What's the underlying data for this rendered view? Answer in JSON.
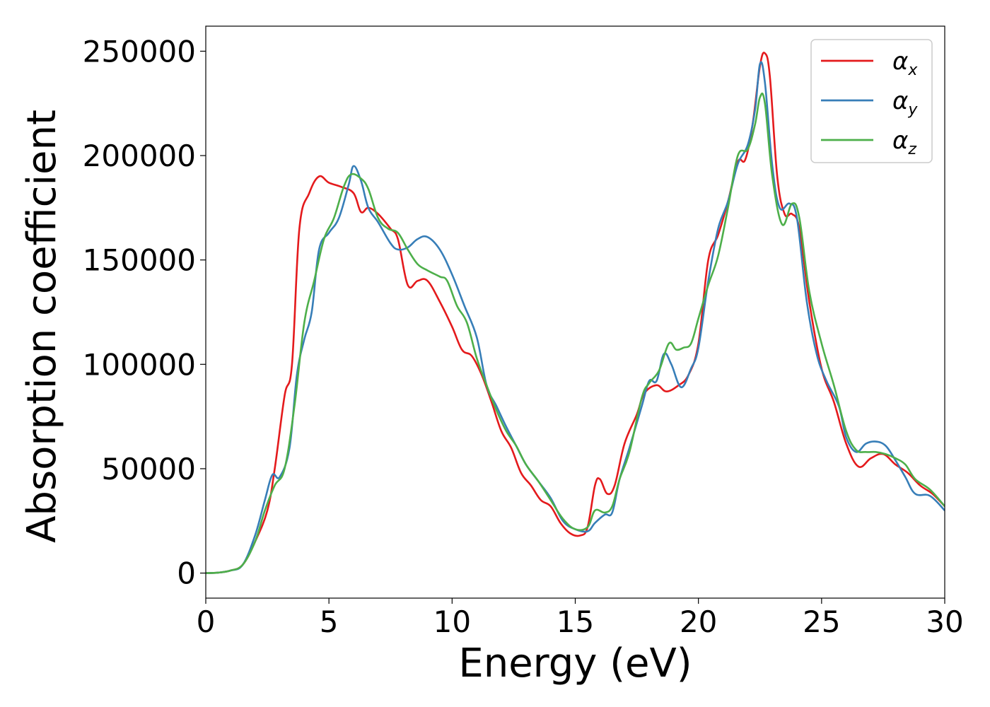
{
  "chart_data": {
    "type": "line",
    "title": "",
    "xlabel": "Energy (eV)",
    "ylabel": "Absorption coefficient",
    "xlim": [
      0,
      30
    ],
    "ylim": [
      -12000,
      262000
    ],
    "xticks": [
      0,
      5,
      10,
      15,
      20,
      25,
      30
    ],
    "xtick_labels": [
      "0",
      "5",
      "10",
      "15",
      "20",
      "25",
      "30"
    ],
    "yticks": [
      0,
      50000,
      100000,
      150000,
      200000,
      250000
    ],
    "ytick_labels": [
      "0",
      "50000",
      "100000",
      "150000",
      "200000",
      "250000"
    ],
    "grid": false,
    "legend_position": "top-right",
    "series": [
      {
        "name": "α",
        "subscript": "x",
        "color": "#e41a1c",
        "points": [
          [
            0,
            0
          ],
          [
            0.5,
            200
          ],
          [
            1.0,
            1200
          ],
          [
            1.5,
            4000
          ],
          [
            2.0,
            15000
          ],
          [
            2.5,
            30000
          ],
          [
            2.8,
            50000
          ],
          [
            3.2,
            85000
          ],
          [
            3.5,
            100000
          ],
          [
            3.8,
            165000
          ],
          [
            4.2,
            182000
          ],
          [
            4.6,
            190000
          ],
          [
            5.0,
            187000
          ],
          [
            5.5,
            185000
          ],
          [
            6.0,
            182000
          ],
          [
            6.3,
            173000
          ],
          [
            6.6,
            175000
          ],
          [
            7.0,
            172000
          ],
          [
            7.5,
            165000
          ],
          [
            7.8,
            160000
          ],
          [
            8.2,
            138000
          ],
          [
            8.6,
            140000
          ],
          [
            9.0,
            140000
          ],
          [
            9.5,
            130000
          ],
          [
            10.0,
            118000
          ],
          [
            10.4,
            107000
          ],
          [
            10.8,
            104000
          ],
          [
            11.2,
            95000
          ],
          [
            11.6,
            82000
          ],
          [
            12.0,
            68000
          ],
          [
            12.4,
            60000
          ],
          [
            12.8,
            48000
          ],
          [
            13.2,
            42000
          ],
          [
            13.6,
            35000
          ],
          [
            14.0,
            32000
          ],
          [
            14.4,
            24000
          ],
          [
            14.8,
            19000
          ],
          [
            15.2,
            18000
          ],
          [
            15.5,
            22000
          ],
          [
            15.8,
            42000
          ],
          [
            16.0,
            45000
          ],
          [
            16.3,
            38000
          ],
          [
            16.6,
            42000
          ],
          [
            17.0,
            62000
          ],
          [
            17.5,
            76000
          ],
          [
            17.8,
            86000
          ],
          [
            18.3,
            90000
          ],
          [
            18.7,
            87000
          ],
          [
            19.2,
            90000
          ],
          [
            19.6,
            95000
          ],
          [
            20.0,
            110000
          ],
          [
            20.4,
            150000
          ],
          [
            20.8,
            162000
          ],
          [
            21.2,
            178000
          ],
          [
            21.6,
            197000
          ],
          [
            21.9,
            198000
          ],
          [
            22.2,
            215000
          ],
          [
            22.5,
            243000
          ],
          [
            22.7,
            249000
          ],
          [
            22.9,
            238000
          ],
          [
            23.2,
            190000
          ],
          [
            23.5,
            172000
          ],
          [
            23.8,
            172000
          ],
          [
            24.1,
            165000
          ],
          [
            24.5,
            130000
          ],
          [
            25.0,
            98000
          ],
          [
            25.5,
            82000
          ],
          [
            26.0,
            62000
          ],
          [
            26.5,
            51000
          ],
          [
            27.0,
            55000
          ],
          [
            27.5,
            57000
          ],
          [
            28.0,
            52000
          ],
          [
            28.5,
            48000
          ],
          [
            29.0,
            42000
          ],
          [
            29.5,
            38000
          ],
          [
            30.0,
            32000
          ]
        ]
      },
      {
        "name": "α",
        "subscript": "y",
        "color": "#377eb8",
        "points": [
          [
            0,
            0
          ],
          [
            0.5,
            200
          ],
          [
            1.0,
            1200
          ],
          [
            1.5,
            4000
          ],
          [
            2.0,
            18000
          ],
          [
            2.4,
            35000
          ],
          [
            2.7,
            47000
          ],
          [
            3.0,
            46000
          ],
          [
            3.4,
            60000
          ],
          [
            3.7,
            95000
          ],
          [
            4.0,
            112000
          ],
          [
            4.3,
            125000
          ],
          [
            4.6,
            155000
          ],
          [
            5.0,
            163000
          ],
          [
            5.4,
            170000
          ],
          [
            5.8,
            186000
          ],
          [
            6.0,
            195000
          ],
          [
            6.3,
            188000
          ],
          [
            6.6,
            175000
          ],
          [
            7.0,
            168000
          ],
          [
            7.5,
            158000
          ],
          [
            7.8,
            155000
          ],
          [
            8.2,
            156000
          ],
          [
            8.6,
            160000
          ],
          [
            9.0,
            161000
          ],
          [
            9.5,
            155000
          ],
          [
            10.0,
            143000
          ],
          [
            10.5,
            128000
          ],
          [
            11.0,
            113000
          ],
          [
            11.4,
            90000
          ],
          [
            11.8,
            80000
          ],
          [
            12.2,
            70000
          ],
          [
            12.6,
            61000
          ],
          [
            13.0,
            52000
          ],
          [
            13.5,
            44000
          ],
          [
            14.0,
            36000
          ],
          [
            14.5,
            25000
          ],
          [
            15.0,
            21000
          ],
          [
            15.5,
            20000
          ],
          [
            15.8,
            24000
          ],
          [
            16.2,
            28000
          ],
          [
            16.5,
            29000
          ],
          [
            16.8,
            45000
          ],
          [
            17.2,
            60000
          ],
          [
            17.7,
            80000
          ],
          [
            18.0,
            92000
          ],
          [
            18.3,
            92000
          ],
          [
            18.6,
            105000
          ],
          [
            18.9,
            100000
          ],
          [
            19.3,
            89000
          ],
          [
            19.7,
            98000
          ],
          [
            20.0,
            108000
          ],
          [
            20.4,
            140000
          ],
          [
            20.8,
            165000
          ],
          [
            21.2,
            178000
          ],
          [
            21.6,
            196000
          ],
          [
            22.0,
            205000
          ],
          [
            22.3,
            222000
          ],
          [
            22.5,
            244000
          ],
          [
            22.7,
            235000
          ],
          [
            23.0,
            195000
          ],
          [
            23.3,
            175000
          ],
          [
            23.7,
            177000
          ],
          [
            24.0,
            170000
          ],
          [
            24.4,
            130000
          ],
          [
            24.8,
            105000
          ],
          [
            25.2,
            92000
          ],
          [
            25.7,
            80000
          ],
          [
            26.0,
            65000
          ],
          [
            26.4,
            58000
          ],
          [
            26.8,
            62000
          ],
          [
            27.2,
            63000
          ],
          [
            27.6,
            61000
          ],
          [
            28.0,
            54000
          ],
          [
            28.4,
            46000
          ],
          [
            28.8,
            38000
          ],
          [
            29.4,
            37000
          ],
          [
            30.0,
            30000
          ]
        ]
      },
      {
        "name": "α",
        "subscript": "z",
        "color": "#4daf4a",
        "points": [
          [
            0,
            0
          ],
          [
            0.5,
            200
          ],
          [
            1.0,
            1200
          ],
          [
            1.5,
            4000
          ],
          [
            2.0,
            15000
          ],
          [
            2.4,
            30000
          ],
          [
            2.8,
            42000
          ],
          [
            3.2,
            50000
          ],
          [
            3.6,
            80000
          ],
          [
            4.0,
            120000
          ],
          [
            4.4,
            140000
          ],
          [
            4.8,
            160000
          ],
          [
            5.2,
            170000
          ],
          [
            5.6,
            185000
          ],
          [
            5.9,
            191000
          ],
          [
            6.3,
            189000
          ],
          [
            6.6,
            184000
          ],
          [
            7.0,
            170000
          ],
          [
            7.4,
            165000
          ],
          [
            7.8,
            163000
          ],
          [
            8.2,
            155000
          ],
          [
            8.6,
            148000
          ],
          [
            9.0,
            145000
          ],
          [
            9.5,
            142000
          ],
          [
            9.8,
            140000
          ],
          [
            10.2,
            128000
          ],
          [
            10.6,
            120000
          ],
          [
            11.0,
            103000
          ],
          [
            11.4,
            90000
          ],
          [
            11.8,
            78000
          ],
          [
            12.2,
            68000
          ],
          [
            12.6,
            61000
          ],
          [
            13.0,
            52000
          ],
          [
            13.5,
            44000
          ],
          [
            14.0,
            35000
          ],
          [
            14.5,
            26000
          ],
          [
            15.0,
            21000
          ],
          [
            15.5,
            22000
          ],
          [
            15.8,
            30000
          ],
          [
            16.2,
            29000
          ],
          [
            16.5,
            32000
          ],
          [
            16.8,
            45000
          ],
          [
            17.2,
            58000
          ],
          [
            17.7,
            84000
          ],
          [
            18.0,
            91000
          ],
          [
            18.4,
            97000
          ],
          [
            18.8,
            110000
          ],
          [
            19.1,
            107000
          ],
          [
            19.4,
            108000
          ],
          [
            19.7,
            110000
          ],
          [
            20.0,
            122000
          ],
          [
            20.4,
            138000
          ],
          [
            20.8,
            152000
          ],
          [
            21.2,
            175000
          ],
          [
            21.6,
            200000
          ],
          [
            22.0,
            203000
          ],
          [
            22.3,
            215000
          ],
          [
            22.5,
            228000
          ],
          [
            22.7,
            225000
          ],
          [
            23.0,
            190000
          ],
          [
            23.4,
            167000
          ],
          [
            23.8,
            177000
          ],
          [
            24.1,
            170000
          ],
          [
            24.5,
            135000
          ],
          [
            25.0,
            110000
          ],
          [
            25.5,
            90000
          ],
          [
            26.0,
            68000
          ],
          [
            26.4,
            59000
          ],
          [
            26.8,
            58000
          ],
          [
            27.2,
            58000
          ],
          [
            27.6,
            57000
          ],
          [
            28.0,
            55000
          ],
          [
            28.4,
            52000
          ],
          [
            28.8,
            45000
          ],
          [
            29.4,
            40000
          ],
          [
            30.0,
            32000
          ]
        ]
      }
    ]
  }
}
